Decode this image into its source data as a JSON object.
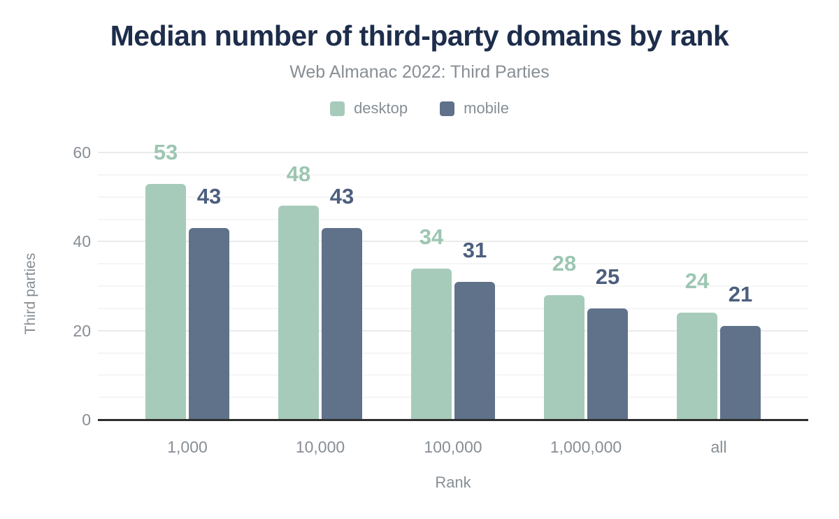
{
  "chart_data": {
    "type": "bar",
    "title": "Median number of third-party domains by rank",
    "subtitle": "Web Almanac 2022: Third Parties",
    "categories": [
      "1,000",
      "10,000",
      "100,000",
      "1,000,000",
      "all"
    ],
    "series": [
      {
        "name": "desktop",
        "color": "#a6cbba",
        "label_color": "#9cc6b2",
        "values": [
          53,
          48,
          34,
          28,
          24
        ]
      },
      {
        "name": "mobile",
        "color": "#60718a",
        "label_color": "#4d5f7f",
        "values": [
          43,
          43,
          31,
          25,
          21
        ]
      }
    ],
    "xlabel": "Rank",
    "ylabel": "Third parties",
    "ylim": [
      0,
      60
    ],
    "yticks": [
      0,
      20,
      40,
      60
    ],
    "grid": "horizontal; minor lines every 5, major lines every 20",
    "legend_position": "top center",
    "data_labels": true
  },
  "palette": {
    "title": "#1d2d4b",
    "muted-text": "#878e94",
    "axis-line": "#2d2d2d",
    "gridline-minor": "#f5f5f6",
    "gridline-major": "#e9eaea",
    "background": "#ffffff"
  }
}
